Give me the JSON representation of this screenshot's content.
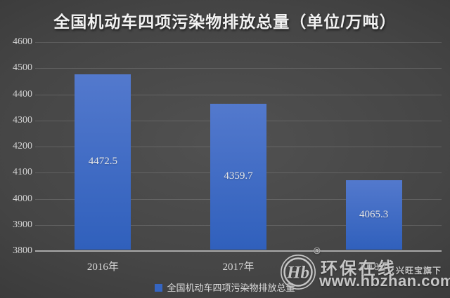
{
  "title": "全国机动车四项污染物排放总量（单位/万吨）",
  "chart_data": {
    "type": "bar",
    "title": "全国机动车四项污染物排放总量（单位/万吨）",
    "categories": [
      "2016年",
      "2017年",
      "2018年"
    ],
    "values": [
      4472.5,
      4359.7,
      4065.3
    ],
    "series_name": "全国机动车四项污染物排放总量",
    "xlabel": "",
    "ylabel": "",
    "ylim": [
      3800,
      4600
    ],
    "y_ticks": [
      3800,
      3900,
      4000,
      4100,
      4200,
      4300,
      4400,
      4500,
      4600
    ],
    "grid": true,
    "legend_position": "bottom",
    "bar_color_top": "#5379CD",
    "bar_color_bottom": "#3060BC"
  },
  "legend": {
    "label": "全国机动车四项污染物排放总量",
    "swatch_color": "#3565c2"
  },
  "watermark": {
    "logo_text": "Hb",
    "registered_mark": "®",
    "brand": "环保在线",
    "sub_brand": "兴旺宝旗下",
    "url": "www.hbzhan.com"
  },
  "colors": {
    "background_center": "#515151",
    "background_edge": "#262626",
    "gridline": "rgba(255,255,255,0.14)",
    "axis_line": "#a8a8a8",
    "text_light": "#d8d8d8",
    "title_text": "#f2f2f2",
    "watermark_text": "#c6c6c6"
  }
}
